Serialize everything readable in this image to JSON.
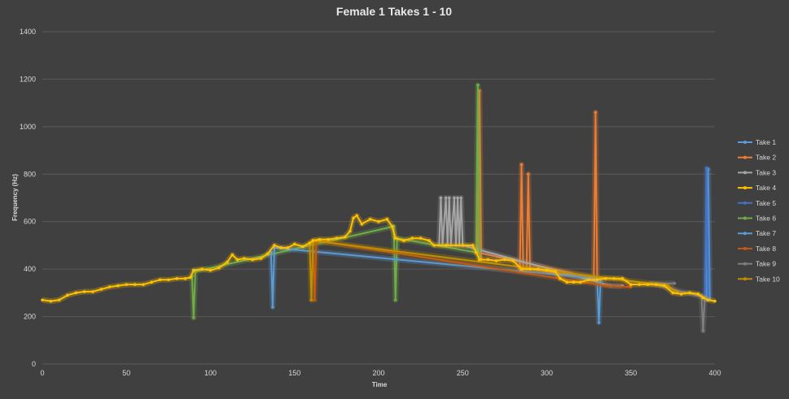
{
  "chart_data": {
    "type": "line",
    "title": "Female 1 Takes 1 - 10",
    "xlabel": "Time",
    "ylabel": "Frequency (Hz)",
    "xlim": [
      0,
      400
    ],
    "ylim": [
      0,
      1400
    ],
    "xticks": [
      0,
      50,
      100,
      150,
      200,
      250,
      300,
      350,
      400
    ],
    "yticks": [
      0,
      200,
      400,
      600,
      800,
      1000,
      1200,
      1400
    ],
    "grid": true,
    "legend_position": "right",
    "series": [
      {
        "name": "Take 1",
        "color": "#5b9bd5",
        "points": [
          [
            395,
            270
          ],
          [
            396,
            820
          ],
          [
            397,
            270
          ]
        ]
      },
      {
        "name": "Take 2",
        "color": "#ed7d31",
        "points": [
          [
            284,
            400
          ],
          [
            285,
            840
          ],
          [
            286,
            400
          ],
          [
            288,
            400
          ],
          [
            289,
            800
          ],
          [
            290,
            400
          ],
          [
            328,
            360
          ],
          [
            329,
            1060
          ],
          [
            330,
            360
          ],
          [
            259,
            470
          ],
          [
            260,
            1150
          ],
          [
            261,
            440
          ]
        ]
      },
      {
        "name": "Take 3",
        "color": "#a5a5a5",
        "points": [
          [
            236,
            500
          ],
          [
            237,
            700
          ],
          [
            238,
            500
          ],
          [
            240,
            700
          ],
          [
            241,
            500
          ],
          [
            242,
            700
          ],
          [
            243,
            500
          ],
          [
            245,
            700
          ],
          [
            246,
            500
          ],
          [
            247,
            700
          ],
          [
            248,
            500
          ],
          [
            249,
            700
          ],
          [
            250,
            500
          ],
          [
            338,
            330
          ],
          [
            345,
            330
          ]
        ]
      },
      {
        "name": "Take 4",
        "color": "#ffc000",
        "points": [
          [
            0,
            270
          ],
          [
            5,
            265
          ],
          [
            10,
            270
          ],
          [
            15,
            290
          ],
          [
            20,
            300
          ],
          [
            25,
            305
          ],
          [
            30,
            305
          ],
          [
            35,
            315
          ],
          [
            40,
            325
          ],
          [
            45,
            330
          ],
          [
            50,
            335
          ],
          [
            55,
            335
          ],
          [
            60,
            335
          ],
          [
            65,
            345
          ],
          [
            70,
            355
          ],
          [
            75,
            355
          ],
          [
            80,
            360
          ],
          [
            85,
            360
          ],
          [
            88,
            365
          ],
          [
            90,
            395
          ],
          [
            95,
            400
          ],
          [
            100,
            395
          ],
          [
            105,
            405
          ],
          [
            110,
            430
          ],
          [
            113,
            460
          ],
          [
            116,
            440
          ],
          [
            120,
            445
          ],
          [
            125,
            440
          ],
          [
            130,
            445
          ],
          [
            134,
            465
          ],
          [
            138,
            500
          ],
          [
            142,
            490
          ],
          [
            146,
            490
          ],
          [
            150,
            505
          ],
          [
            155,
            495
          ],
          [
            159,
            510
          ],
          [
            161,
            520
          ],
          [
            165,
            525
          ],
          [
            170,
            525
          ],
          [
            175,
            530
          ],
          [
            180,
            535
          ],
          [
            183,
            560
          ],
          [
            185,
            615
          ],
          [
            187,
            625
          ],
          [
            190,
            590
          ],
          [
            195,
            610
          ],
          [
            200,
            600
          ],
          [
            205,
            610
          ],
          [
            208,
            580
          ],
          [
            210,
            530
          ],
          [
            215,
            520
          ],
          [
            220,
            530
          ],
          [
            225,
            530
          ],
          [
            230,
            520
          ],
          [
            233,
            500
          ],
          [
            240,
            500
          ],
          [
            250,
            500
          ],
          [
            256,
            500
          ],
          [
            258,
            470
          ],
          [
            260,
            440
          ],
          [
            265,
            440
          ],
          [
            270,
            435
          ],
          [
            275,
            440
          ],
          [
            280,
            435
          ],
          [
            285,
            400
          ],
          [
            290,
            400
          ],
          [
            295,
            400
          ],
          [
            300,
            395
          ],
          [
            305,
            390
          ],
          [
            308,
            360
          ],
          [
            312,
            345
          ],
          [
            316,
            345
          ],
          [
            320,
            345
          ],
          [
            325,
            355
          ],
          [
            330,
            355
          ],
          [
            335,
            360
          ],
          [
            340,
            360
          ],
          [
            345,
            360
          ],
          [
            350,
            335
          ],
          [
            355,
            335
          ],
          [
            360,
            335
          ],
          [
            365,
            335
          ],
          [
            370,
            330
          ],
          [
            375,
            300
          ],
          [
            380,
            295
          ],
          [
            385,
            300
          ],
          [
            390,
            295
          ],
          [
            393,
            280
          ],
          [
            396,
            270
          ],
          [
            400,
            265
          ]
        ]
      },
      {
        "name": "Take 5",
        "color": "#4472c4",
        "points": [
          [
            394,
            270
          ],
          [
            395,
            825
          ],
          [
            396,
            270
          ]
        ]
      },
      {
        "name": "Take 6",
        "color": "#70ad47",
        "points": [
          [
            89,
            370
          ],
          [
            90,
            195
          ],
          [
            91,
            390
          ],
          [
            209,
            580
          ],
          [
            210,
            270
          ],
          [
            211,
            530
          ],
          [
            258,
            470
          ],
          [
            259,
            1175
          ],
          [
            260,
            440
          ]
        ]
      },
      {
        "name": "Take 7",
        "color": "#5b9bd5",
        "points": [
          [
            136,
            470
          ],
          [
            137,
            240
          ],
          [
            138,
            490
          ],
          [
            330,
            360
          ],
          [
            331,
            175
          ],
          [
            332,
            360
          ]
        ]
      },
      {
        "name": "Take 8",
        "color": "#c55a11",
        "points": [
          [
            161,
            510
          ],
          [
            162,
            270
          ],
          [
            163,
            520
          ],
          [
            335,
            330
          ],
          [
            350,
            325
          ]
        ]
      },
      {
        "name": "Take 9",
        "color": "#7f7f7f",
        "points": [
          [
            392,
            290
          ],
          [
            393,
            140
          ],
          [
            394,
            280
          ],
          [
            362,
            340
          ],
          [
            376,
            340
          ]
        ]
      },
      {
        "name": "Take 10",
        "color": "#bf8f00",
        "points": [
          [
            159,
            510
          ],
          [
            160,
            270
          ],
          [
            161,
            520
          ],
          [
            372,
            330
          ],
          [
            378,
            300
          ]
        ]
      }
    ]
  }
}
